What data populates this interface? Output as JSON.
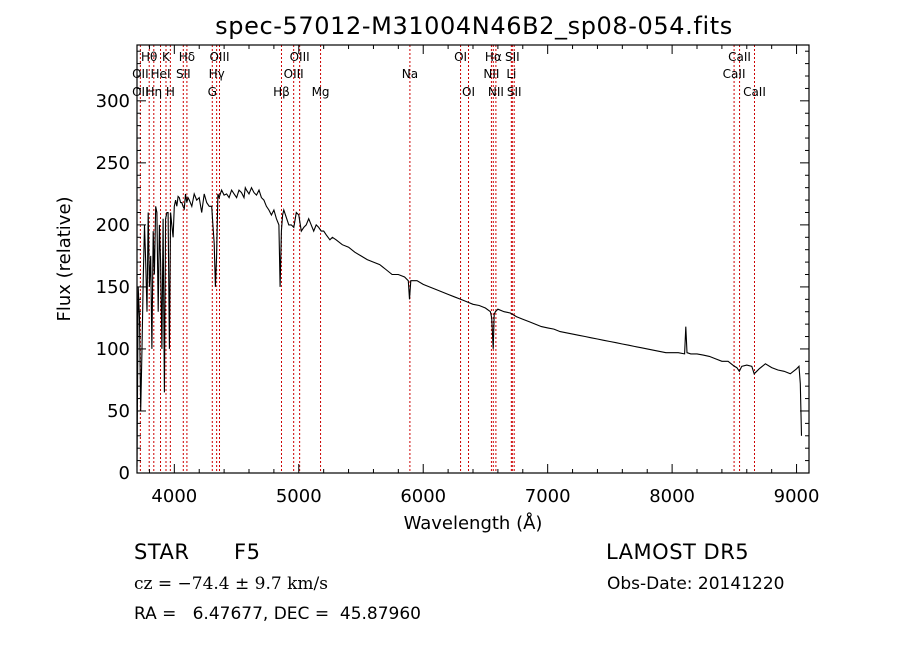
{
  "chart_data": {
    "type": "line",
    "title": "spec-57012-M31004N46B2_sp08-054.fits",
    "xlabel": "Wavelength (Å)",
    "ylabel": "Flux (relative)",
    "xlim": [
      3700,
      9100
    ],
    "ylim": [
      0,
      345
    ],
    "xticks": [
      4000,
      5000,
      6000,
      7000,
      8000,
      9000
    ],
    "yticks": [
      0,
      50,
      100,
      150,
      200,
      250,
      300
    ],
    "grid": false,
    "line_color": "#000000",
    "marker_color": "#cc0000",
    "series": [
      {
        "x": [
          3700,
          3710,
          3720,
          3730,
          3740,
          3750,
          3760,
          3770,
          3780,
          3790,
          3800,
          3810,
          3820,
          3830,
          3840,
          3850,
          3860,
          3870,
          3880,
          3890,
          3900,
          3910,
          3920,
          3930,
          3940,
          3950,
          3960,
          3970,
          3980,
          3990,
          4000,
          4010,
          4020,
          4030,
          4040,
          4050,
          4060,
          4070,
          4080,
          4090,
          4100,
          4110,
          4120,
          4140,
          4160,
          4180,
          4200,
          4220,
          4240,
          4260,
          4280,
          4300,
          4310,
          4320,
          4330,
          4340,
          4350,
          4360,
          4380,
          4400,
          4420,
          4440,
          4460,
          4480,
          4500,
          4520,
          4540,
          4560,
          4570,
          4580,
          4600,
          4620,
          4640,
          4660,
          4680,
          4700,
          4720,
          4740,
          4760,
          4780,
          4800,
          4820,
          4840,
          4850,
          4860,
          4870,
          4880,
          4900,
          4920,
          4940,
          4960,
          4980,
          5000,
          5020,
          5040,
          5060,
          5080,
          5100,
          5120,
          5140,
          5160,
          5180,
          5200,
          5220,
          5250,
          5270,
          5300,
          5350,
          5400,
          5450,
          5500,
          5550,
          5600,
          5650,
          5700,
          5750,
          5800,
          5850,
          5880,
          5890,
          5900,
          5950,
          6000,
          6050,
          6100,
          6150,
          6200,
          6250,
          6300,
          6350,
          6400,
          6450,
          6500,
          6540,
          6550,
          6562,
          6570,
          6580,
          6600,
          6650,
          6700,
          6750,
          6800,
          6850,
          6900,
          6950,
          7000,
          7050,
          7100,
          7150,
          7200,
          7250,
          7300,
          7350,
          7400,
          7450,
          7500,
          7550,
          7600,
          7650,
          7700,
          7750,
          7800,
          7850,
          7900,
          7950,
          8000,
          8050,
          8100,
          8110,
          8120,
          8150,
          8200,
          8250,
          8300,
          8350,
          8400,
          8450,
          8500,
          8520,
          8540,
          8560,
          8600,
          8640,
          8660,
          8700,
          8750,
          8800,
          8850,
          8900,
          8950,
          9000,
          9020,
          9030,
          9040
        ],
        "y": [
          5,
          150,
          125,
          50,
          100,
          155,
          200,
          170,
          130,
          210,
          150,
          175,
          100,
          195,
          160,
          215,
          210,
          130,
          200,
          170,
          100,
          205,
          65,
          205,
          210,
          210,
          100,
          210,
          200,
          190,
          215,
          220,
          215,
          223,
          222,
          218,
          218,
          215,
          213,
          225,
          218,
          222,
          220,
          215,
          225,
          220,
          222,
          210,
          225,
          218,
          215,
          215,
          200,
          185,
          150,
          175,
          225,
          222,
          228,
          224,
          225,
          222,
          228,
          225,
          222,
          228,
          226,
          222,
          230,
          228,
          225,
          230,
          226,
          224,
          228,
          222,
          220,
          215,
          212,
          208,
          212,
          205,
          200,
          150,
          195,
          208,
          212,
          206,
          200,
          200,
          198,
          210,
          208,
          195,
          198,
          200,
          205,
          200,
          195,
          200,
          198,
          195,
          195,
          192,
          188,
          190,
          188,
          184,
          182,
          178,
          175,
          172,
          170,
          168,
          164,
          160,
          160,
          158,
          155,
          140,
          155,
          155,
          152,
          150,
          148,
          146,
          144,
          142,
          140,
          138,
          136,
          135,
          133,
          130,
          125,
          100,
          128,
          130,
          132,
          130,
          129,
          126,
          124,
          122,
          120,
          118,
          117,
          116,
          114,
          113,
          112,
          111,
          110,
          109,
          108,
          107,
          106,
          105,
          104,
          103,
          102,
          101,
          100,
          99,
          98,
          97,
          97,
          97,
          96,
          118,
          97,
          96,
          96,
          95,
          94,
          92,
          90,
          90,
          86,
          85,
          82,
          86,
          87,
          86,
          80,
          84,
          88,
          85,
          83,
          82,
          80,
          84,
          86,
          72,
          30
        ]
      }
    ],
    "lines": [
      {
        "name": "Hθ",
        "x": 3798,
        "row": 1
      },
      {
        "name": "K",
        "x": 3933,
        "row": 1
      },
      {
        "name": "Hδ",
        "x": 4101,
        "row": 1
      },
      {
        "name": "OIII",
        "x": 4363,
        "row": 1
      },
      {
        "name": "OIII",
        "x": 5007,
        "row": 1
      },
      {
        "name": "OI",
        "x": 6300,
        "row": 1
      },
      {
        "name": "Hα",
        "x": 6563,
        "row": 1
      },
      {
        "name": "SII",
        "x": 6716,
        "row": 1
      },
      {
        "name": "CaII",
        "x": 8542,
        "row": 1
      },
      {
        "name": "OII",
        "x": 3727,
        "row": 2
      },
      {
        "name": "HeI",
        "x": 3889,
        "row": 2
      },
      {
        "name": "SII",
        "x": 4072,
        "row": 2
      },
      {
        "name": "Hγ",
        "x": 4340,
        "row": 2
      },
      {
        "name": "OIII",
        "x": 4959,
        "row": 2
      },
      {
        "name": "Na",
        "x": 5893,
        "row": 2
      },
      {
        "name": "NII",
        "x": 6548,
        "row": 2
      },
      {
        "name": "Li",
        "x": 6708,
        "row": 2
      },
      {
        "name": "CaII",
        "x": 8498,
        "row": 2
      },
      {
        "name": "OII",
        "x": 3727,
        "row": 3
      },
      {
        "name": "Hη",
        "x": 3835,
        "row": 3
      },
      {
        "name": "H",
        "x": 3968,
        "row": 3
      },
      {
        "name": "G",
        "x": 4305,
        "row": 3
      },
      {
        "name": "Hβ",
        "x": 4861,
        "row": 3
      },
      {
        "name": "Mg",
        "x": 5175,
        "row": 3
      },
      {
        "name": "OI",
        "x": 6364,
        "row": 3
      },
      {
        "name": "NII",
        "x": 6584,
        "row": 3
      },
      {
        "name": "SII",
        "x": 6731,
        "row": 3
      },
      {
        "name": "CaII",
        "x": 8662,
        "row": 3
      }
    ]
  },
  "info": {
    "class_label": "STAR",
    "subclass": "F5",
    "survey": "LAMOST  DR5",
    "cz_text": "cz = −74.4 ± 9.7 km/s",
    "obs_date": "Obs-Date: 20141220",
    "coords": "RA =   6.47677, DEC =  45.87960"
  }
}
